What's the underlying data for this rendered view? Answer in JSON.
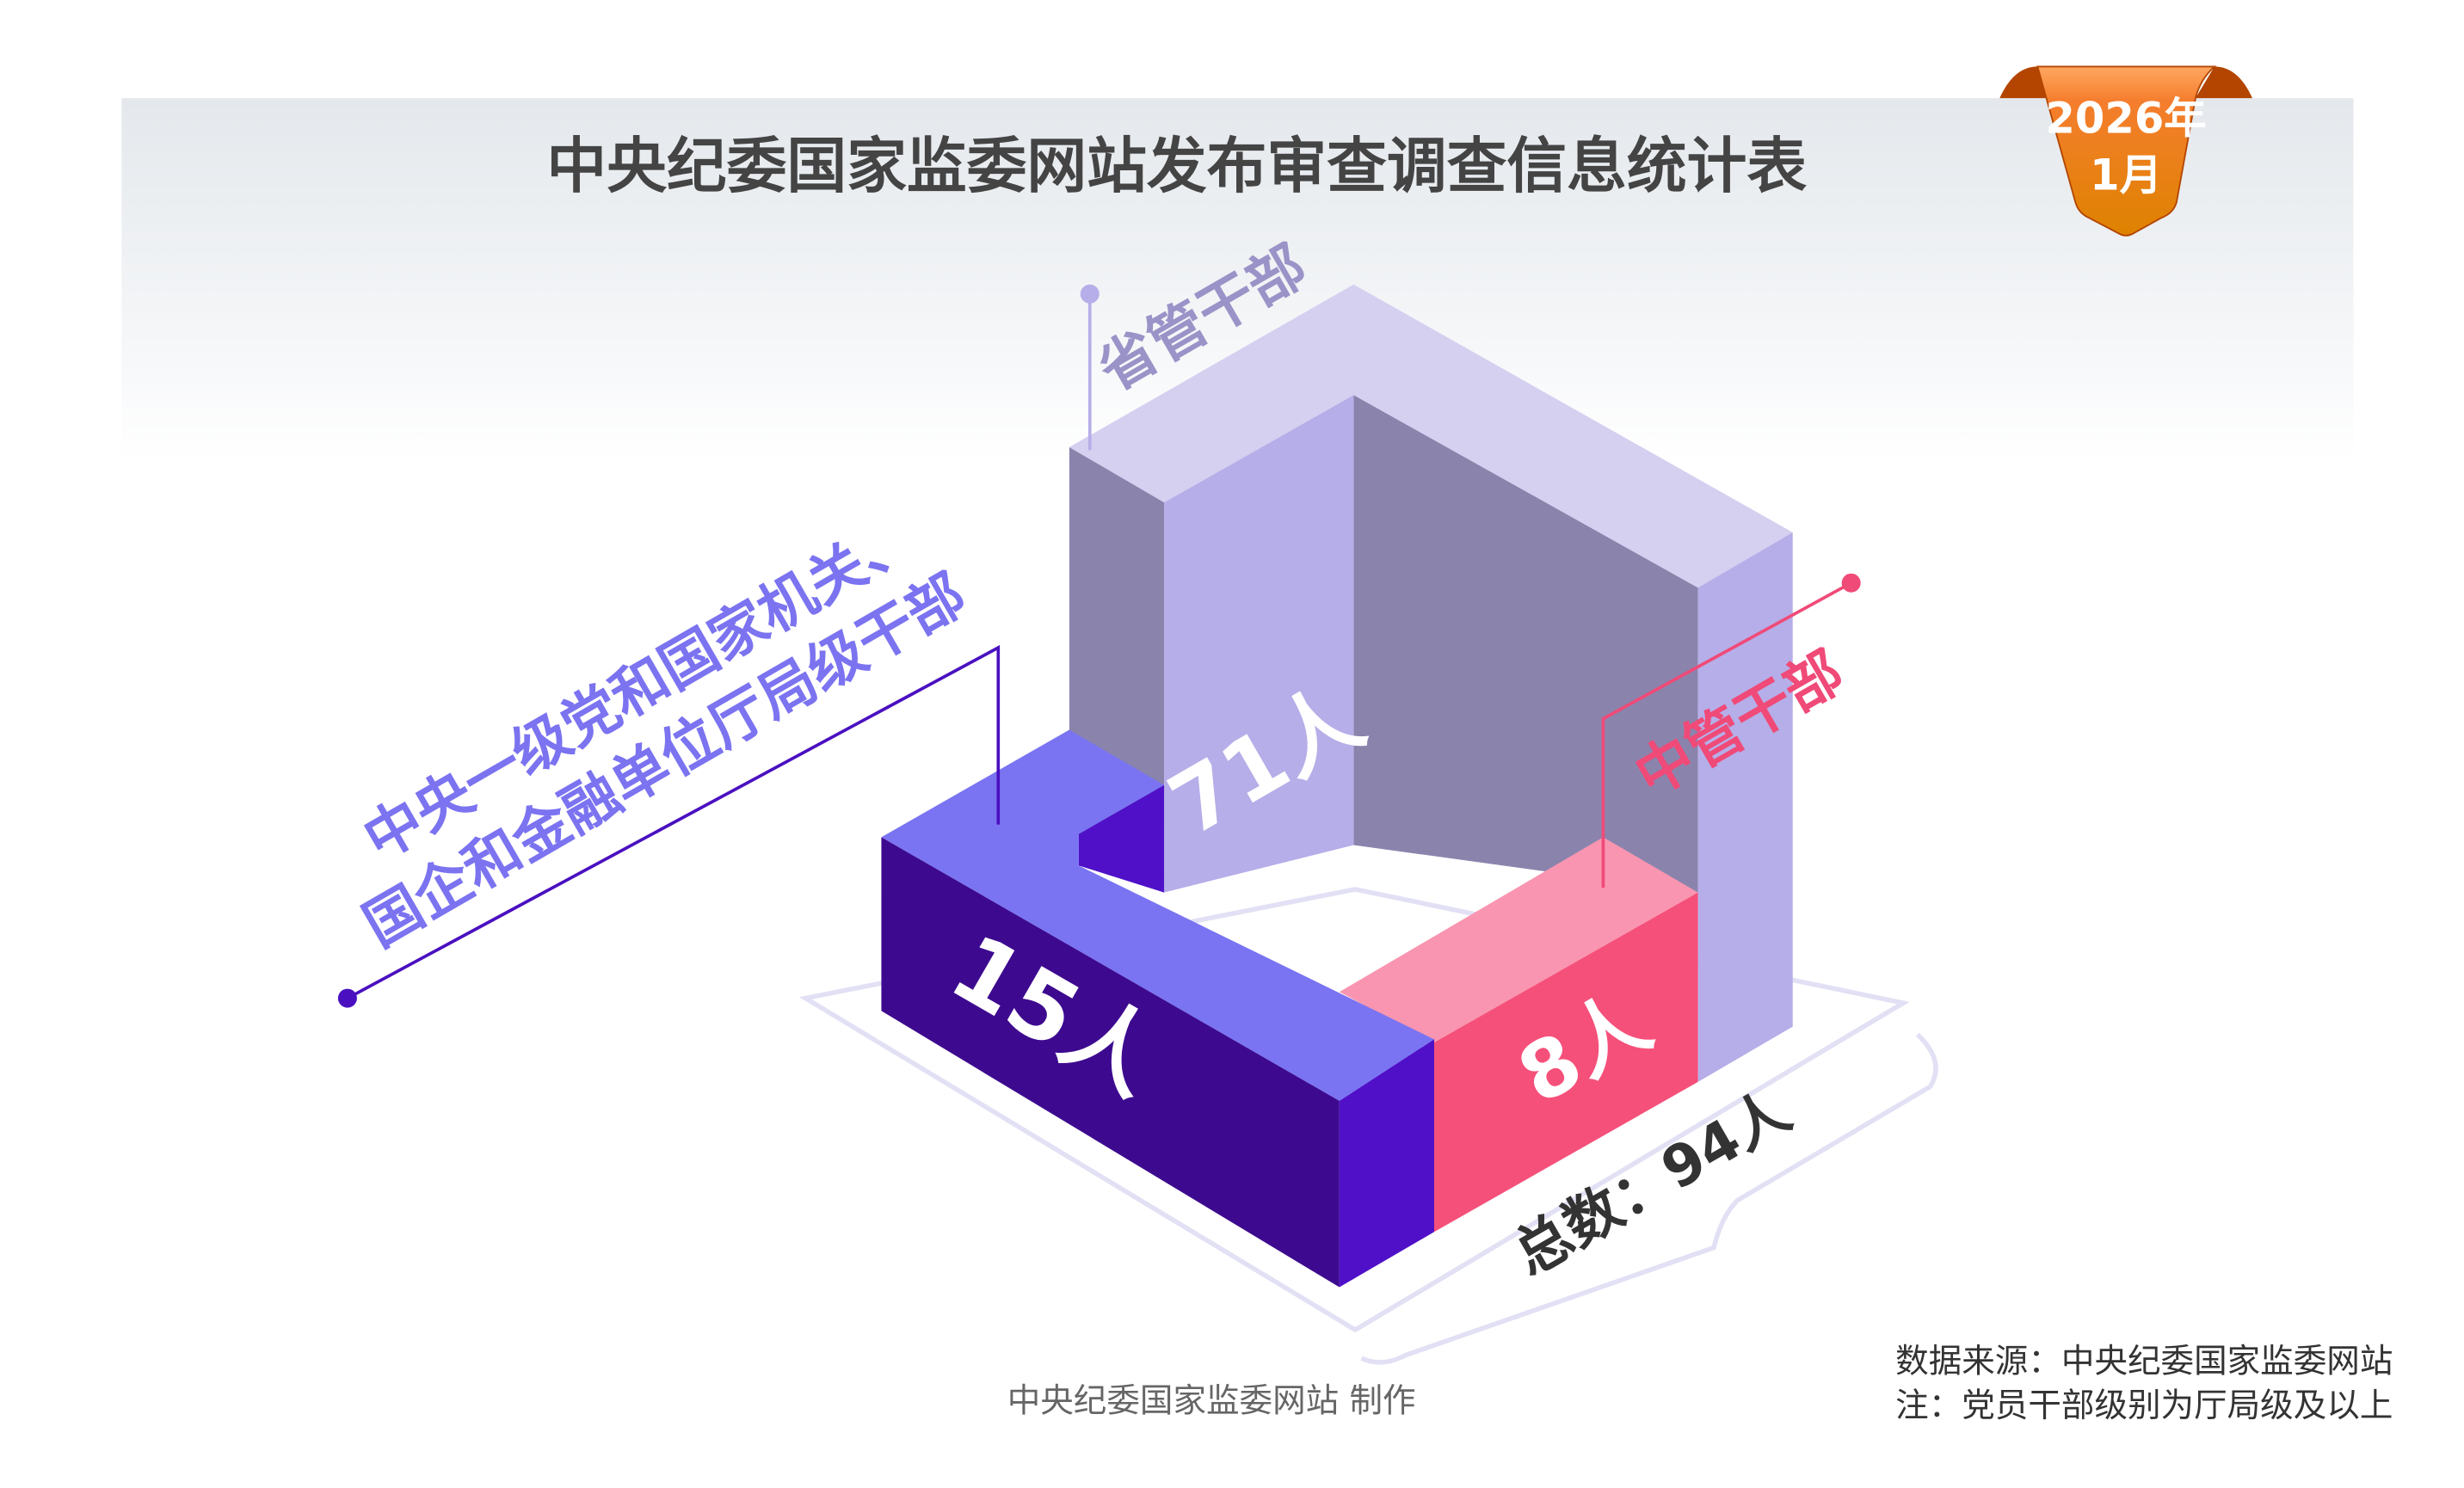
{
  "title": "中央纪委国家监委网站发布审查调查信息统计表",
  "badge": {
    "year": "2026年",
    "month": "1月"
  },
  "chart_data": {
    "type": "bar",
    "title": "中央纪委国家监委网站发布审查调查信息统计表",
    "categories": [
      "省管干部",
      "中央一级党和国家机关、国企和金融单位厅局级干部",
      "中管干部"
    ],
    "category_lines": {
      "central_line1": "中央一级党和国家机关、",
      "central_line2": "国企和金融单位厅局级干部"
    },
    "values": [
      71,
      15,
      8
    ],
    "value_labels": [
      "71人",
      "15人",
      "8人"
    ],
    "unit": "人",
    "total": 94,
    "total_label": "总数：94人",
    "colors": {
      "provincial": "#b6aee8",
      "central_units": "#3d0a8f",
      "central_managed": "#f5507a"
    }
  },
  "footer": {
    "credit": "中央纪委国家监委网站 制作",
    "source": "数据来源：中央纪委国家监委网站",
    "note": "注：党员干部级别为厅局级及以上"
  }
}
